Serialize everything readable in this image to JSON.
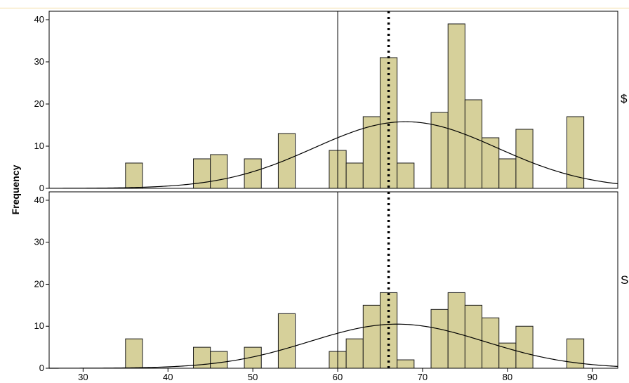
{
  "colors": {
    "bar_fill": "#d6d09a",
    "bar_stroke": "#1a1a1a",
    "curve": "#000000",
    "frame": "#000000",
    "top_rule": "#f3dca0"
  },
  "chart_data": [
    {
      "type": "bar",
      "panel": "top",
      "ylabel": "Frequency",
      "xlim": [
        26,
        93
      ],
      "ylim": [
        0,
        42
      ],
      "yticks": [
        0,
        10,
        20,
        30,
        40
      ],
      "xticks": [
        30,
        40,
        50,
        60,
        70,
        80,
        90
      ],
      "bin_width": 2,
      "x": [
        36,
        44,
        46,
        50,
        54,
        60,
        62,
        64,
        66,
        68,
        72,
        74,
        76,
        78,
        80,
        82,
        88
      ],
      "values": [
        6,
        7,
        8,
        7,
        13,
        9,
        6,
        17,
        31,
        6,
        18,
        39,
        21,
        12,
        7,
        14,
        17
      ],
      "normal_curve": {
        "mean": 68,
        "sd": 10.8,
        "peak": 15.8
      },
      "vertical_line": 60,
      "dotted_line": 66,
      "side_label": "$"
    },
    {
      "type": "bar",
      "panel": "bottom",
      "xlim": [
        26,
        93
      ],
      "ylim": [
        0,
        42
      ],
      "yticks": [
        0,
        10,
        20,
        30,
        40
      ],
      "xticks": [
        30,
        40,
        50,
        60,
        70,
        80,
        90
      ],
      "bin_width": 2,
      "x": [
        36,
        44,
        46,
        50,
        54,
        60,
        62,
        64,
        66,
        68,
        72,
        74,
        76,
        78,
        80,
        82,
        88
      ],
      "values": [
        7,
        5,
        4,
        5,
        13,
        4,
        7,
        15,
        18,
        2,
        14,
        18,
        15,
        12,
        6,
        10,
        7
      ],
      "normal_curve": {
        "mean": 67,
        "sd": 10.3,
        "peak": 10.5
      },
      "vertical_line": 60,
      "dotted_line": 66,
      "side_label": "S"
    }
  ]
}
